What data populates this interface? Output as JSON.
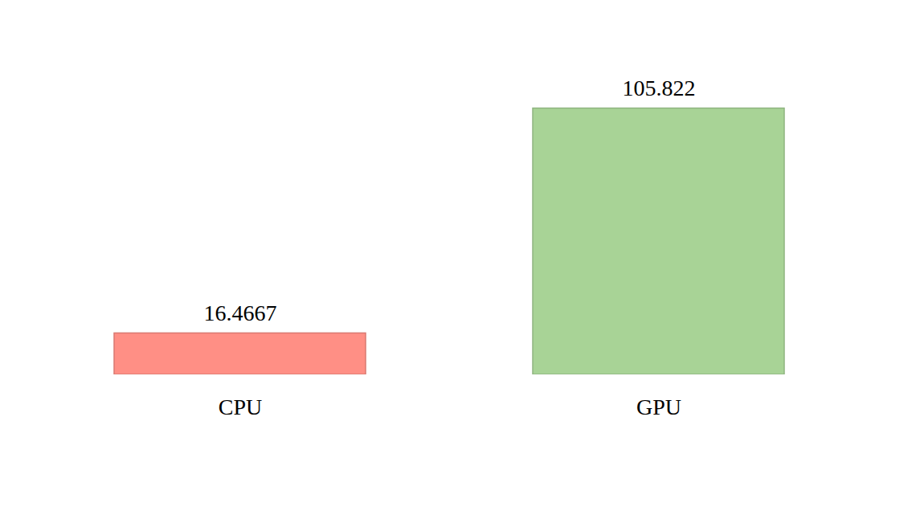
{
  "chart_data": {
    "type": "bar",
    "categories": [
      "CPU",
      "GPU"
    ],
    "values": [
      16.4667,
      105.822
    ],
    "colors": [
      "#ff8f85",
      "#a8d396"
    ],
    "ylim": [
      0,
      111.1
    ],
    "tick_labels": "x",
    "data_labels": true,
    "grid": false
  }
}
